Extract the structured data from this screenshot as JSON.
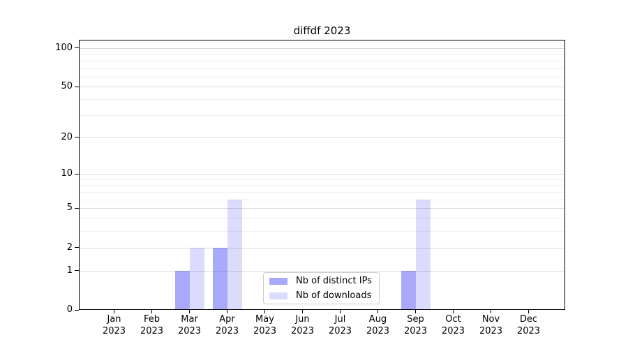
{
  "chart_data": {
    "type": "bar",
    "title": "diffdf 2023",
    "categories": [
      "Jan\n2023",
      "Feb\n2023",
      "Mar\n2023",
      "Apr\n2023",
      "May\n2023",
      "Jun\n2023",
      "Jul\n2023",
      "Aug\n2023",
      "Sep\n2023",
      "Oct\n2023",
      "Nov\n2023",
      "Dec\n2023"
    ],
    "series": [
      {
        "name": "Nb of distinct IPs",
        "color": "rgba(40,40,240,0.40)",
        "values": [
          0,
          0,
          1,
          2,
          0,
          0,
          0,
          0,
          1,
          0,
          0,
          0
        ]
      },
      {
        "name": "Nb of downloads",
        "color": "rgba(40,40,240,0.17)",
        "values": [
          0,
          0,
          2,
          6,
          0,
          0,
          0,
          0,
          6,
          0,
          0,
          0
        ]
      }
    ],
    "xlabel": "",
    "ylabel": "",
    "y_axis": {
      "scale": "log1p",
      "ylim": [
        0,
        116
      ],
      "major_ticks": [
        0,
        1,
        2,
        5,
        10,
        20,
        50,
        100
      ],
      "minor_ticks": [
        3,
        4,
        6,
        7,
        8,
        9,
        30,
        40,
        60,
        70,
        80,
        90
      ]
    },
    "grid": {
      "major_color": "#d9d9d9",
      "minor_color": "#efefef",
      "enabled": true
    },
    "legend": {
      "position": "lower-center-inside",
      "border_color": "#cccccc"
    },
    "colors": {
      "distinct_ips_solid": "#a9a9fb",
      "downloads_solid": "#dadafb"
    }
  }
}
